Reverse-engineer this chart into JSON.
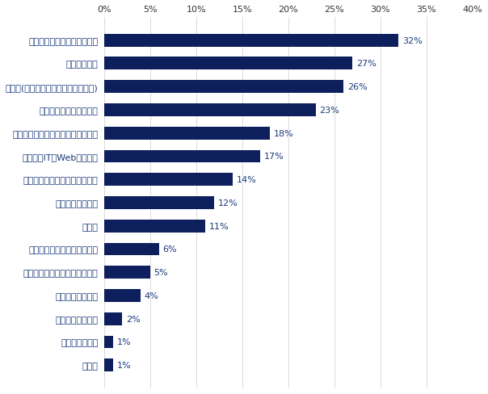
{
  "categories": [
    "その他",
    "不動産系専門職",
    "サービス・流通系",
    "クリエイティブ系",
    "技術・専門職系（メディカル）",
    "技術系（化学・素材・食品）",
    "金融系",
    "コンサルタント系",
    "技術系（電気・電子・半導体）",
    "技術系（IT・Web・通信）",
    "技術系（機械・メカトロ・自動車）",
    "営業・マーケティング系",
    "技術系(建築・設備・土木・プラント)",
    "事務・管理系",
    "経営・経営企画・事業企画系"
  ],
  "values": [
    1,
    1,
    2,
    4,
    5,
    6,
    11,
    12,
    14,
    17,
    18,
    23,
    26,
    27,
    32
  ],
  "bar_color": "#0d1f5c",
  "text_color": "#1a3a7c",
  "label_color": "#1a3a7c",
  "background_color": "#ffffff",
  "xlim": [
    0,
    40
  ],
  "xticks": [
    0,
    5,
    10,
    15,
    20,
    25,
    30,
    35,
    40
  ],
  "bar_height": 0.55,
  "figsize": [
    6.04,
    4.89
  ],
  "dpi": 100,
  "tick_fontsize": 8,
  "label_fontsize": 8,
  "ytick_fontsize": 8
}
